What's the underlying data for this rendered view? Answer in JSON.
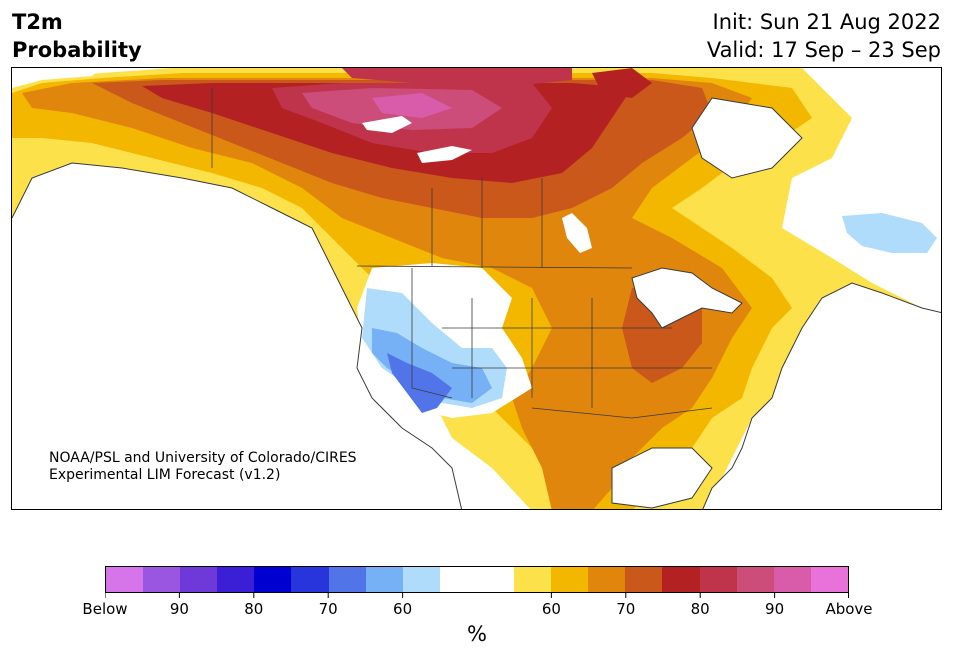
{
  "header": {
    "title_line1": "T2m",
    "title_line2": "Probability",
    "init_text": "Init: Sun 21 Aug 2022",
    "valid_text": "Valid: 17 Sep – 23 Sep"
  },
  "map": {
    "credit_line1": "NOAA/PSL and University of Colorado/CIRES",
    "credit_line2": "Experimental LIM Forecast (v1.2)"
  },
  "colorbar": {
    "unit_label": "%",
    "colors": [
      "#d674e9",
      "#9a55e1",
      "#6f39d9",
      "#3a1fd6",
      "#0000d1",
      "#2735db",
      "#5174e8",
      "#76b0f5",
      "#b0dcfb",
      "#ffffff",
      "#ffffff",
      "#fde14b",
      "#f3b700",
      "#e0860d",
      "#c9581a",
      "#b32123",
      "#c0344b",
      "#cc4d79",
      "#d95cab",
      "#e872da"
    ],
    "ticks": [
      "Below",
      "90",
      "80",
      "70",
      "60",
      "60",
      "70",
      "80",
      "90",
      "Above"
    ]
  },
  "colors": {
    "ocean": "#ffffff",
    "coast": "#3a3a3a"
  }
}
